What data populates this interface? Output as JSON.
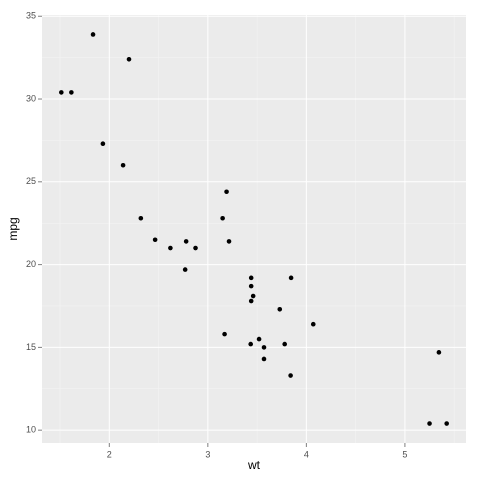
{
  "chart_data": {
    "type": "scatter",
    "x_label": "wt",
    "y_label": "mpg",
    "x": [
      2.62,
      2.875,
      2.32,
      3.215,
      3.44,
      3.46,
      3.57,
      3.19,
      3.15,
      3.44,
      3.44,
      4.07,
      3.73,
      3.78,
      5.25,
      5.424,
      5.345,
      2.2,
      1.615,
      1.835,
      2.465,
      3.52,
      3.435,
      3.84,
      3.845,
      1.935,
      2.14,
      1.513,
      3.17,
      2.77,
      3.57,
      2.78
    ],
    "values": [
      21.0,
      21.0,
      22.8,
      21.4,
      18.7,
      18.1,
      14.3,
      24.4,
      22.8,
      19.2,
      17.8,
      16.4,
      17.3,
      15.2,
      10.4,
      10.4,
      14.7,
      32.4,
      30.4,
      33.9,
      21.5,
      15.5,
      15.2,
      13.3,
      19.2,
      27.3,
      26.0,
      30.4,
      15.8,
      19.7,
      15.0,
      21.4
    ],
    "color": "#000000",
    "xlim": [
      1.317,
      5.62
    ],
    "xticks": [
      2,
      3,
      4,
      5
    ],
    "x_minor_ticks": [
      1.5,
      2.5,
      3.5,
      4.5,
      5.5
    ],
    "ylim": [
      9.225,
      35.075
    ],
    "yticks": [
      10,
      15,
      20,
      25,
      30,
      35
    ],
    "y_minor_ticks": [
      12.5,
      17.5,
      22.5,
      27.5,
      32.5
    ],
    "grid": true
  }
}
